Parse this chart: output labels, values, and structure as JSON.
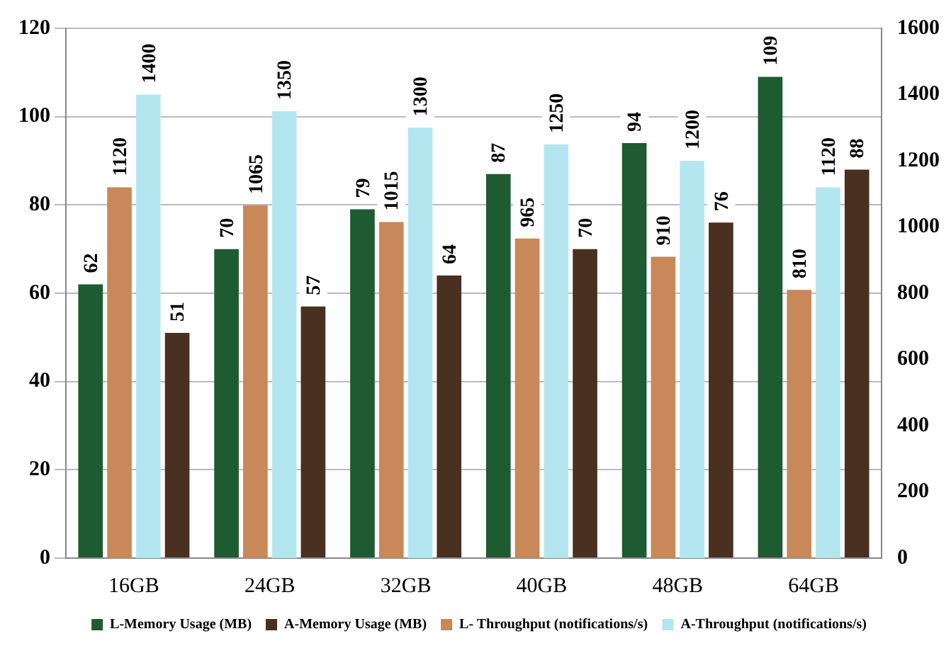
{
  "chart_data": {
    "type": "bar",
    "categories": [
      "16GB",
      "24GB",
      "32GB",
      "40GB",
      "48GB",
      "64GB"
    ],
    "series": [
      {
        "name": "L-Memory Usage (MB)",
        "color": "#1e5a32",
        "values": [
          62,
          70,
          79,
          87,
          94,
          109
        ]
      },
      {
        "name": "L- Throughput (notifications/s)",
        "color": "#c8885a",
        "axis": "y2",
        "values": [
          1120,
          1065,
          1015,
          965,
          910,
          810
        ]
      },
      {
        "name": "A-Throughput (notifications/s)",
        "color": "#b4e6f0",
        "axis": "y2",
        "values": [
          1400,
          1350,
          1300,
          1250,
          1200,
          1120
        ]
      },
      {
        "name": "A-Memory Usage (MB)",
        "color": "#4a3020",
        "values": [
          51,
          57,
          64,
          70,
          76,
          88
        ]
      }
    ],
    "ylim": [
      0,
      120
    ],
    "yticks": [
      0,
      20,
      40,
      60,
      80,
      100,
      120
    ],
    "y2lim": [
      0,
      1600
    ],
    "y2ticks": [
      0,
      200,
      400,
      600,
      800,
      1000,
      1200,
      1400,
      1600
    ],
    "grid": "y",
    "legend": "bottom",
    "data_labels": true
  }
}
